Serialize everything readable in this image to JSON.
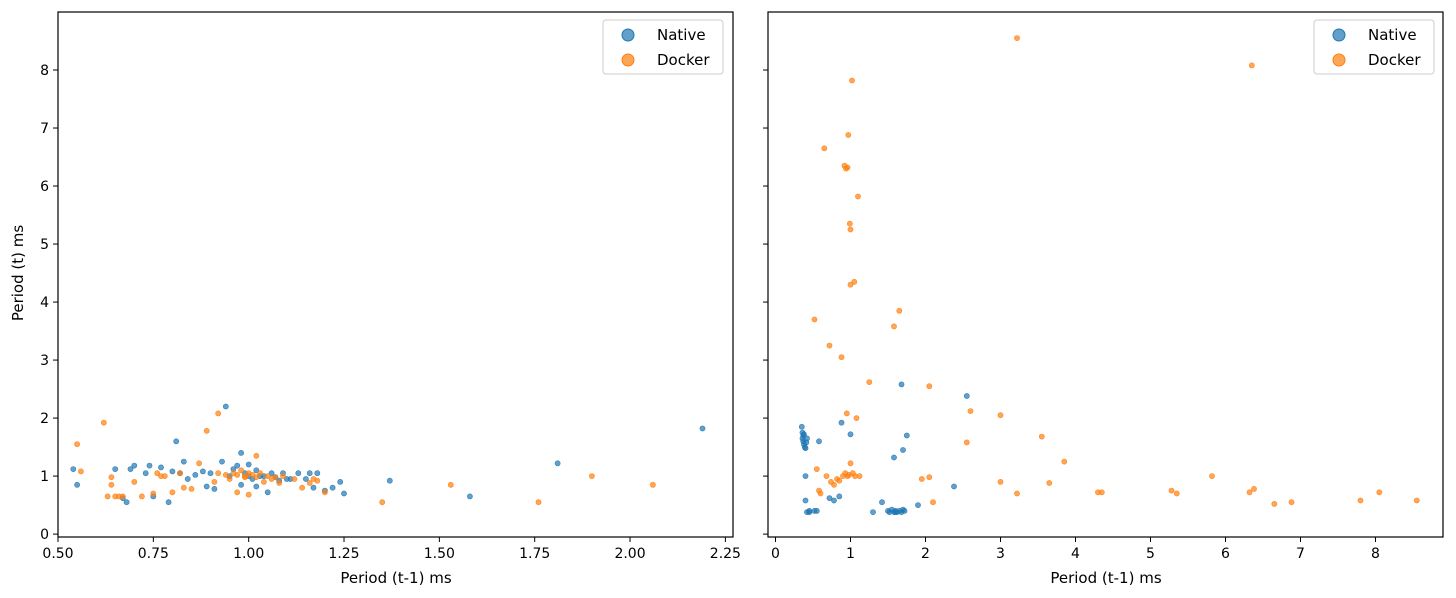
{
  "chart_data": [
    {
      "type": "scatter",
      "xlabel": "Period (t-1) ms",
      "ylabel": "Period (t) ms",
      "xlim": [
        0.5,
        2.27
      ],
      "ylim": [
        -0.05,
        9.0
      ],
      "xticks": [
        0.5,
        0.75,
        1.0,
        1.25,
        1.5,
        1.75,
        2.0,
        2.25
      ],
      "xtick_labels": [
        "0.50",
        "0.75",
        "1.00",
        "1.25",
        "1.50",
        "1.75",
        "2.00",
        "2.25"
      ],
      "yticks": [
        0,
        1,
        2,
        3,
        4,
        5,
        6,
        7,
        8
      ],
      "ytick_labels": [
        "0",
        "1",
        "2",
        "3",
        "4",
        "5",
        "6",
        "7",
        "8"
      ],
      "legend_position": "top-right",
      "grid": false,
      "series": [
        {
          "name": "Native",
          "color": "#1f77b4",
          "points": [
            [
              0.54,
              1.12
            ],
            [
              0.55,
              0.85
            ],
            [
              0.65,
              1.12
            ],
            [
              0.67,
              0.62
            ],
            [
              0.68,
              0.55
            ],
            [
              0.69,
              1.12
            ],
            [
              0.7,
              1.18
            ],
            [
              0.73,
              1.05
            ],
            [
              0.74,
              1.18
            ],
            [
              0.75,
              0.65
            ],
            [
              0.77,
              1.15
            ],
            [
              0.79,
              0.55
            ],
            [
              0.8,
              1.08
            ],
            [
              0.81,
              1.6
            ],
            [
              0.82,
              1.05
            ],
            [
              0.83,
              1.25
            ],
            [
              0.84,
              0.95
            ],
            [
              0.86,
              1.02
            ],
            [
              0.88,
              1.08
            ],
            [
              0.89,
              0.82
            ],
            [
              0.9,
              1.05
            ],
            [
              0.91,
              0.78
            ],
            [
              0.93,
              1.25
            ],
            [
              0.94,
              2.2
            ],
            [
              0.95,
              1.0
            ],
            [
              0.96,
              1.12
            ],
            [
              0.97,
              1.18
            ],
            [
              0.98,
              1.4
            ],
            [
              0.98,
              0.85
            ],
            [
              0.99,
              1.05
            ],
            [
              1.0,
              1.0
            ],
            [
              1.0,
              1.2
            ],
            [
              1.01,
              0.95
            ],
            [
              1.02,
              1.1
            ],
            [
              1.02,
              0.82
            ],
            [
              1.03,
              1.0
            ],
            [
              1.04,
              1.0
            ],
            [
              1.05,
              0.72
            ],
            [
              1.06,
              1.05
            ],
            [
              1.07,
              0.98
            ],
            [
              1.08,
              0.92
            ],
            [
              1.09,
              1.05
            ],
            [
              1.1,
              0.95
            ],
            [
              1.11,
              0.95
            ],
            [
              1.13,
              1.05
            ],
            [
              1.15,
              0.95
            ],
            [
              1.16,
              1.05
            ],
            [
              1.17,
              0.8
            ],
            [
              1.18,
              1.05
            ],
            [
              1.2,
              0.75
            ],
            [
              1.22,
              0.8
            ],
            [
              1.24,
              0.9
            ],
            [
              1.25,
              0.7
            ],
            [
              1.37,
              0.92
            ],
            [
              1.58,
              0.65
            ],
            [
              1.81,
              1.22
            ],
            [
              2.19,
              1.82
            ]
          ]
        },
        {
          "name": "Docker",
          "color": "#ff7f0e",
          "points": [
            [
              0.55,
              1.55
            ],
            [
              0.56,
              1.08
            ],
            [
              0.62,
              1.92
            ],
            [
              0.63,
              0.65
            ],
            [
              0.64,
              0.85
            ],
            [
              0.64,
              0.98
            ],
            [
              0.65,
              0.65
            ],
            [
              0.66,
              0.65
            ],
            [
              0.67,
              0.65
            ],
            [
              0.7,
              0.9
            ],
            [
              0.72,
              0.65
            ],
            [
              0.75,
              0.7
            ],
            [
              0.76,
              1.05
            ],
            [
              0.77,
              1.0
            ],
            [
              0.78,
              1.0
            ],
            [
              0.8,
              0.72
            ],
            [
              0.82,
              1.05
            ],
            [
              0.83,
              0.8
            ],
            [
              0.85,
              0.78
            ],
            [
              0.87,
              1.22
            ],
            [
              0.89,
              1.78
            ],
            [
              0.91,
              0.9
            ],
            [
              0.92,
              1.05
            ],
            [
              0.92,
              2.08
            ],
            [
              0.94,
              1.02
            ],
            [
              0.95,
              0.95
            ],
            [
              0.96,
              1.05
            ],
            [
              0.97,
              0.72
            ],
            [
              0.97,
              1.02
            ],
            [
              0.98,
              1.1
            ],
            [
              0.99,
              1.0
            ],
            [
              0.99,
              0.98
            ],
            [
              1.0,
              1.05
            ],
            [
              1.0,
              0.68
            ],
            [
              1.01,
              1.02
            ],
            [
              1.02,
              0.98
            ],
            [
              1.02,
              1.35
            ],
            [
              1.03,
              1.05
            ],
            [
              1.04,
              0.9
            ],
            [
              1.05,
              1.0
            ],
            [
              1.06,
              0.95
            ],
            [
              1.07,
              0.98
            ],
            [
              1.08,
              0.88
            ],
            [
              1.09,
              1.0
            ],
            [
              1.12,
              0.95
            ],
            [
              1.14,
              0.8
            ],
            [
              1.16,
              0.88
            ],
            [
              1.17,
              0.95
            ],
            [
              1.18,
              0.92
            ],
            [
              1.2,
              0.72
            ],
            [
              1.35,
              0.55
            ],
            [
              1.53,
              0.85
            ],
            [
              1.76,
              0.55
            ],
            [
              1.9,
              1.0
            ],
            [
              2.06,
              0.85
            ]
          ]
        }
      ]
    },
    {
      "type": "scatter",
      "xlabel": "Period (t-1) ms",
      "ylabel": "",
      "xlim": [
        -0.1,
        8.9
      ],
      "ylim": [
        -0.05,
        9.0
      ],
      "xticks": [
        0,
        1,
        2,
        3,
        4,
        5,
        6,
        7,
        8
      ],
      "xtick_labels": [
        "0",
        "1",
        "2",
        "3",
        "4",
        "5",
        "6",
        "7",
        "8"
      ],
      "yticks": [
        0,
        1,
        2,
        3,
        4,
        5,
        6,
        7,
        8
      ],
      "ytick_labels": [],
      "legend_position": "top-right",
      "grid": false,
      "series": [
        {
          "name": "Native",
          "color": "#1f77b4",
          "points": [
            [
              0.35,
              1.85
            ],
            [
              0.36,
              1.75
            ],
            [
              0.37,
              1.7
            ],
            [
              0.36,
              1.65
            ],
            [
              0.37,
              1.6
            ],
            [
              0.38,
              1.55
            ],
            [
              0.39,
              1.5
            ],
            [
              0.4,
              1.48
            ],
            [
              0.41,
              1.58
            ],
            [
              0.42,
              1.65
            ],
            [
              0.4,
              1.0
            ],
            [
              0.4,
              0.58
            ],
            [
              0.42,
              0.38
            ],
            [
              0.45,
              0.38
            ],
            [
              0.52,
              0.4
            ],
            [
              0.55,
              0.4
            ],
            [
              0.58,
              1.6
            ],
            [
              0.72,
              0.62
            ],
            [
              0.78,
              0.58
            ],
            [
              0.85,
              0.65
            ],
            [
              0.88,
              1.92
            ],
            [
              1.0,
              1.72
            ],
            [
              1.3,
              0.38
            ],
            [
              1.42,
              0.55
            ],
            [
              1.5,
              0.4
            ],
            [
              1.52,
              0.38
            ],
            [
              1.55,
              0.42
            ],
            [
              1.58,
              0.38
            ],
            [
              1.6,
              0.4
            ],
            [
              1.62,
              0.38
            ],
            [
              1.65,
              0.4
            ],
            [
              1.68,
              0.38
            ],
            [
              1.7,
              0.42
            ],
            [
              1.72,
              0.4
            ],
            [
              1.58,
              1.32
            ],
            [
              1.68,
              2.58
            ],
            [
              1.7,
              1.45
            ],
            [
              1.75,
              1.7
            ],
            [
              1.9,
              0.5
            ],
            [
              2.38,
              0.82
            ],
            [
              2.55,
              2.38
            ],
            [
              1.6,
              0.38
            ],
            [
              0.45,
              0.4
            ],
            [
              0.38,
              1.72
            ]
          ]
        },
        {
          "name": "Docker",
          "color": "#ff7f0e",
          "points": [
            [
              0.52,
              3.7
            ],
            [
              0.55,
              1.12
            ],
            [
              0.58,
              0.75
            ],
            [
              0.6,
              0.7
            ],
            [
              0.65,
              6.65
            ],
            [
              0.68,
              1.0
            ],
            [
              0.72,
              3.25
            ],
            [
              0.74,
              0.9
            ],
            [
              0.78,
              0.85
            ],
            [
              0.82,
              0.95
            ],
            [
              0.85,
              0.92
            ],
            [
              0.88,
              3.05
            ],
            [
              0.9,
              1.0
            ],
            [
              0.92,
              6.35
            ],
            [
              0.93,
              1.05
            ],
            [
              0.95,
              2.08
            ],
            [
              0.96,
              1.0
            ],
            [
              0.97,
              6.88
            ],
            [
              0.98,
              1.02
            ],
            [
              0.99,
              5.35
            ],
            [
              1.0,
              5.25
            ],
            [
              1.0,
              4.3
            ],
            [
              1.0,
              1.22
            ],
            [
              1.02,
              7.82
            ],
            [
              1.03,
              1.05
            ],
            [
              1.05,
              4.35
            ],
            [
              1.06,
              1.0
            ],
            [
              1.08,
              2.0
            ],
            [
              1.1,
              5.82
            ],
            [
              1.12,
              1.0
            ],
            [
              1.25,
              2.62
            ],
            [
              1.58,
              3.58
            ],
            [
              1.65,
              3.85
            ],
            [
              1.95,
              0.95
            ],
            [
              2.05,
              2.55
            ],
            [
              2.05,
              0.98
            ],
            [
              2.1,
              0.55
            ],
            [
              2.55,
              1.58
            ],
            [
              2.6,
              2.12
            ],
            [
              3.0,
              2.05
            ],
            [
              3.0,
              0.9
            ],
            [
              3.22,
              0.7
            ],
            [
              3.22,
              8.55
            ],
            [
              3.55,
              1.68
            ],
            [
              3.65,
              0.88
            ],
            [
              3.85,
              1.25
            ],
            [
              4.3,
              0.72
            ],
            [
              4.35,
              0.72
            ],
            [
              5.28,
              0.75
            ],
            [
              5.35,
              0.7
            ],
            [
              5.82,
              1.0
            ],
            [
              6.32,
              0.72
            ],
            [
              6.35,
              8.08
            ],
            [
              6.38,
              0.78
            ],
            [
              6.65,
              0.52
            ],
            [
              6.88,
              0.55
            ],
            [
              7.8,
              0.58
            ],
            [
              8.05,
              0.72
            ],
            [
              8.55,
              0.58
            ],
            [
              0.96,
              6.32
            ],
            [
              0.94,
              6.3
            ]
          ]
        }
      ]
    }
  ]
}
